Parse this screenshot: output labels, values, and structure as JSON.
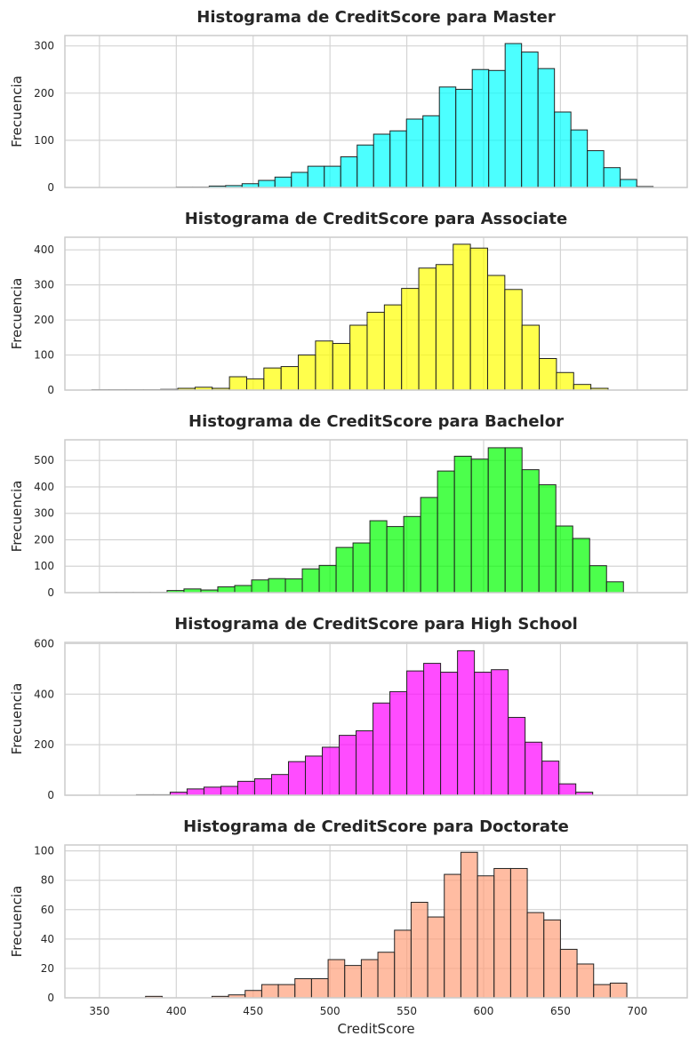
{
  "chart_data": [
    {
      "type": "bar",
      "title": "Histograma de CreditScore para Master",
      "ylabel": "Frecuencia",
      "xlabel": "",
      "color": "#00ffff",
      "xlim": [
        327.5,
        732.5
      ],
      "ylim": [
        0,
        322
      ],
      "xticks": [
        350,
        400,
        450,
        500,
        550,
        600,
        650,
        700
      ],
      "yticks": [
        0,
        100,
        200,
        300
      ],
      "show_xtick_labels": false,
      "bin_edges": [
        400.0,
        410.7,
        421.4,
        432.1,
        442.8,
        453.5,
        464.2,
        474.9,
        485.6,
        496.3,
        507.0,
        517.7,
        528.4,
        539.1,
        549.8,
        560.5,
        571.2,
        581.9,
        592.6,
        603.3,
        614.0,
        624.7,
        635.4,
        646.1,
        656.8,
        667.5,
        678.2,
        688.9,
        699.6,
        710.3
      ],
      "values": [
        1,
        1,
        3,
        4,
        8,
        15,
        22,
        32,
        45,
        45,
        65,
        90,
        113,
        120,
        145,
        152,
        213,
        208,
        250,
        248,
        305,
        287,
        252,
        160,
        122,
        78,
        42,
        17,
        2
      ]
    },
    {
      "type": "bar",
      "title": "Histograma de CreditScore para Associate",
      "ylabel": "Frecuencia",
      "xlabel": "",
      "color": "#ffff00",
      "xlim": [
        327.5,
        732.5
      ],
      "ylim": [
        0,
        436
      ],
      "xticks": [
        350,
        400,
        450,
        500,
        550,
        600,
        650,
        700
      ],
      "yticks": [
        0,
        100,
        200,
        300,
        400
      ],
      "show_xtick_labels": false,
      "bin_edges": [
        345.0,
        356.2,
        367.4,
        378.6,
        389.8,
        401.0,
        412.2,
        423.4,
        434.6,
        445.8,
        457.0,
        468.2,
        479.4,
        490.6,
        501.8,
        513.0,
        524.2,
        535.4,
        546.6,
        557.8,
        569.0,
        580.2,
        591.4,
        602.6,
        613.8,
        625.0,
        636.2,
        647.4,
        658.6,
        669.8,
        681.0
      ],
      "values": [
        1,
        1,
        1,
        1,
        2,
        5,
        8,
        5,
        38,
        32,
        63,
        67,
        100,
        140,
        133,
        185,
        222,
        243,
        290,
        348,
        358,
        416,
        405,
        327,
        287,
        185,
        90,
        50,
        16,
        5
      ]
    },
    {
      "type": "bar",
      "title": "Histograma de CreditScore para Bachelor",
      "ylabel": "Frecuencia",
      "xlabel": "",
      "color": "#00ff00",
      "xlim": [
        327.5,
        732.5
      ],
      "ylim": [
        0,
        578
      ],
      "xticks": [
        350,
        400,
        450,
        500,
        550,
        600,
        650,
        700
      ],
      "yticks": [
        0,
        100,
        200,
        300,
        400,
        500
      ],
      "show_xtick_labels": false,
      "bin_edges": [
        350.0,
        361.0,
        372.0,
        383.0,
        394.0,
        405.0,
        416.0,
        427.0,
        438.0,
        449.0,
        460.0,
        471.0,
        482.0,
        493.0,
        504.0,
        515.0,
        526.0,
        537.0,
        548.0,
        559.0,
        570.0,
        581.0,
        592.0,
        603.0,
        614.0,
        625.0,
        636.0,
        647.0,
        658.0,
        669.0,
        680.0,
        691.0
      ],
      "values": [
        1,
        1,
        1,
        1,
        8,
        14,
        10,
        22,
        27,
        48,
        53,
        52,
        90,
        103,
        171,
        188,
        272,
        250,
        288,
        360,
        460,
        516,
        505,
        548,
        548,
        465,
        408,
        252,
        205,
        102,
        41,
        2
      ]
    },
    {
      "type": "bar",
      "title": "Histograma de CreditScore para High School",
      "ylabel": "Frecuencia",
      "xlabel": "",
      "color": "#ff00ff",
      "xlim": [
        327.5,
        732.5
      ],
      "ylim": [
        0,
        605
      ],
      "xticks": [
        350,
        400,
        450,
        500,
        550,
        600,
        650,
        700
      ],
      "yticks": [
        0,
        200,
        400,
        600
      ],
      "show_xtick_labels": false,
      "bin_edges": [
        374.0,
        385.0,
        396.0,
        407.0,
        418.0,
        429.0,
        440.0,
        451.0,
        462.0,
        473.0,
        484.0,
        495.0,
        506.0,
        517.0,
        528.0,
        539.0,
        550.0,
        561.0,
        572.0,
        583.0,
        594.0,
        605.0,
        616.0,
        627.0,
        638.0,
        649.0,
        660.0,
        671.0
      ],
      "values": [
        2,
        2,
        12,
        25,
        32,
        35,
        55,
        65,
        82,
        133,
        155,
        190,
        237,
        255,
        365,
        410,
        492,
        522,
        487,
        572,
        487,
        497,
        308,
        210,
        135,
        45,
        12
      ]
    },
    {
      "type": "bar",
      "title": "Histograma de CreditScore para Doctorate",
      "ylabel": "Frecuencia",
      "xlabel": "CreditScore",
      "color": "#ffa07a",
      "xlim": [
        327.5,
        732.5
      ],
      "ylim": [
        0,
        104
      ],
      "xticks": [
        350,
        400,
        450,
        500,
        550,
        600,
        650,
        700
      ],
      "yticks": [
        0,
        20,
        40,
        60,
        80,
        100
      ],
      "show_xtick_labels": true,
      "bin_edges": [
        380.0,
        390.8,
        401.6,
        412.4,
        423.2,
        434.0,
        444.8,
        455.6,
        466.4,
        477.2,
        488.0,
        498.8,
        509.6,
        520.4,
        531.2,
        542.0,
        552.8,
        563.6,
        574.4,
        585.2,
        596.0,
        606.8,
        617.6,
        628.4,
        639.2,
        650.0,
        660.8,
        671.6,
        682.4,
        693.2,
        704.0
      ],
      "values": [
        1,
        0,
        0,
        0,
        1,
        2,
        5,
        9,
        9,
        13,
        13,
        26,
        22,
        26,
        31,
        46,
        65,
        55,
        84,
        99,
        83,
        88,
        88,
        58,
        53,
        33,
        23,
        9,
        10,
        0
      ]
    }
  ]
}
